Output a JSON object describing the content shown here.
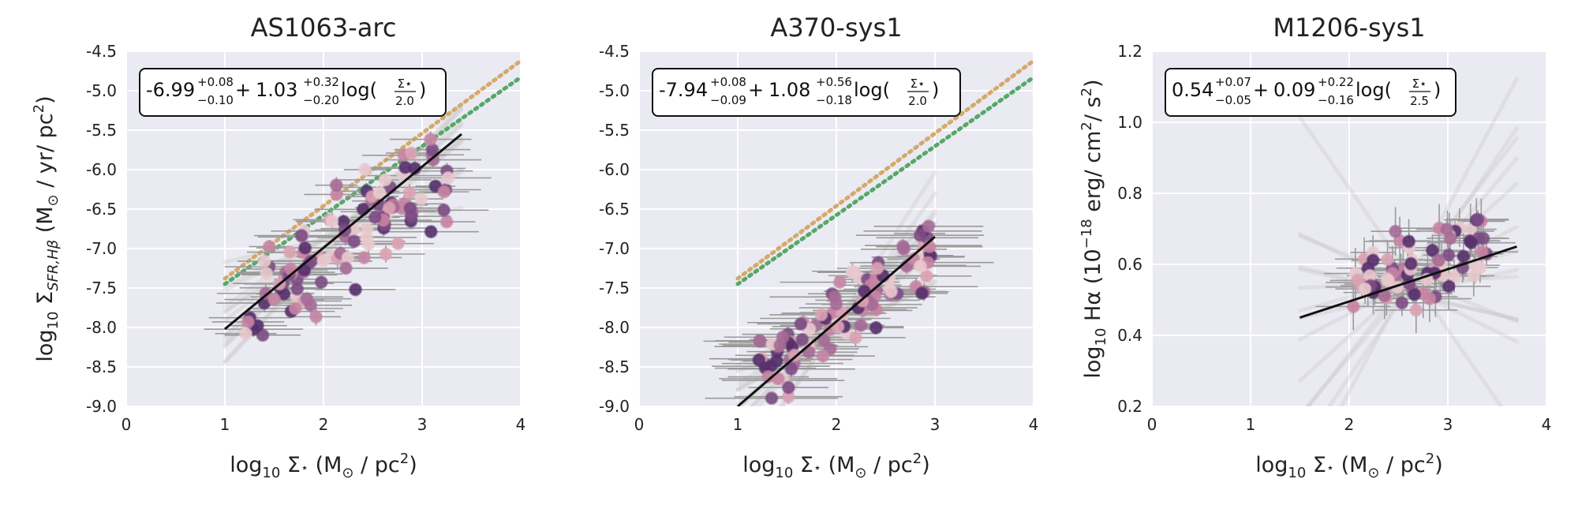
{
  "chart_data": [
    {
      "type": "scatter",
      "title": "AS1063-arc",
      "xlabel": "log10 Σ⋆ (M⊙ / pc2)",
      "ylabel": "log10 ΣSFR,Hβ (M⊙ / yr/ pc2)",
      "xlim": [
        0,
        4
      ],
      "ylim": [
        -9.0,
        -4.5
      ],
      "xticks": [
        "0",
        "1",
        "2",
        "3",
        "4"
      ],
      "yticks": [
        "-9.0",
        "-8.5",
        "-8.0",
        "-7.5",
        "-7.0",
        "-6.5",
        "-6.0",
        "-5.5",
        "-5.0",
        "-4.5"
      ],
      "fit_equation": {
        "intercept": "-6.99",
        "intercept_plus": "+0.08",
        "intercept_minus": "−0.10",
        "slope": "1.03",
        "slope_plus": "+0.32",
        "slope_minus": "−0.20",
        "log_text": "log(",
        "pivot_num": "Σ⋆",
        "pivot_den": "2.0",
        "close": ")"
      },
      "fit_line": {
        "x": [
          1.0,
          3.4
        ],
        "y": [
          -8.02,
          -5.55
        ]
      },
      "reference_lines": [
        {
          "color": "#d4a96a",
          "x": [
            1.0,
            4.0
          ],
          "y": [
            -7.38,
            -4.62
          ]
        },
        {
          "color": "#55a868",
          "x": [
            1.0,
            4.0
          ],
          "y": [
            -7.45,
            -4.83
          ]
        }
      ],
      "points": {
        "n": 110,
        "x_range": [
          1.2,
          3.3
        ],
        "y_center_at_pivot": -6.9,
        "scatter": 0.3,
        "xerr": 0.35
      }
    },
    {
      "type": "scatter",
      "title": "A370-sys1",
      "xlabel": "log10 Σ⋆ (M⊙ / pc2)",
      "ylabel": "",
      "xlim": [
        0,
        4
      ],
      "ylim": [
        -9.0,
        -4.5
      ],
      "xticks": [
        "0",
        "1",
        "2",
        "3",
        "4"
      ],
      "yticks": [
        "-9.0",
        "-8.5",
        "-8.0",
        "-7.5",
        "-7.0",
        "-6.5",
        "-6.0",
        "-5.5",
        "-5.0",
        "-4.5"
      ],
      "fit_equation": {
        "intercept": "-7.94",
        "intercept_plus": "+0.08",
        "intercept_minus": "−0.09",
        "slope": "1.08",
        "slope_plus": "+0.56",
        "slope_minus": "−0.18",
        "log_text": "log(",
        "pivot_num": "Σ⋆",
        "pivot_den": "2.0",
        "close": ")"
      },
      "fit_line": {
        "x": [
          1.0,
          3.0
        ],
        "y": [
          -9.0,
          -6.85
        ]
      },
      "reference_lines": [
        {
          "color": "#d4a96a",
          "x": [
            1.0,
            4.0
          ],
          "y": [
            -7.38,
            -4.62
          ]
        },
        {
          "color": "#55a868",
          "x": [
            1.0,
            4.0
          ],
          "y": [
            -7.45,
            -4.83
          ]
        }
      ],
      "points": {
        "n": 100,
        "x_range": [
          1.2,
          3.0
        ],
        "y_center_at_pivot": -7.9,
        "scatter": 0.22,
        "xerr": 0.45
      }
    },
    {
      "type": "scatter",
      "title": "M1206-sys1",
      "xlabel": "log10 Σ⋆ (M⊙ / pc2)",
      "ylabel": "log10 Hα (10−18 erg/ cm2/ s2)",
      "xlim": [
        0,
        4
      ],
      "ylim": [
        0.2,
        1.2
      ],
      "xticks": [
        "0",
        "1",
        "2",
        "3",
        "4"
      ],
      "yticks": [
        "0.2",
        "0.4",
        "0.6",
        "0.8",
        "1.0",
        "1.2"
      ],
      "fit_equation": {
        "intercept": "0.54",
        "intercept_plus": "+0.07",
        "intercept_minus": "−0.05",
        "slope": "0.09",
        "slope_plus": "+0.22",
        "slope_minus": "−0.16",
        "log_text": "log(",
        "pivot_num": "Σ⋆",
        "pivot_den": "2.5",
        "close": ")"
      },
      "fit_line": {
        "x": [
          1.5,
          3.7
        ],
        "y": [
          0.45,
          0.65
        ]
      },
      "reference_lines": [],
      "points": {
        "n": 80,
        "x_range": [
          2.0,
          3.4
        ],
        "y_center_at_pivot": 0.58,
        "scatter": 0.06,
        "xerr": 0.3
      }
    }
  ],
  "colors": {
    "panel_bg": "#eaeaf2",
    "grid": "#ffffff",
    "fit": "#111111",
    "errorbar": "#9a9a9a",
    "band": "#c8c8c8",
    "point_palette": [
      "#e8c9cd",
      "#dba2b3",
      "#c784a3",
      "#a56b96",
      "#7c4c84",
      "#57306b"
    ]
  }
}
